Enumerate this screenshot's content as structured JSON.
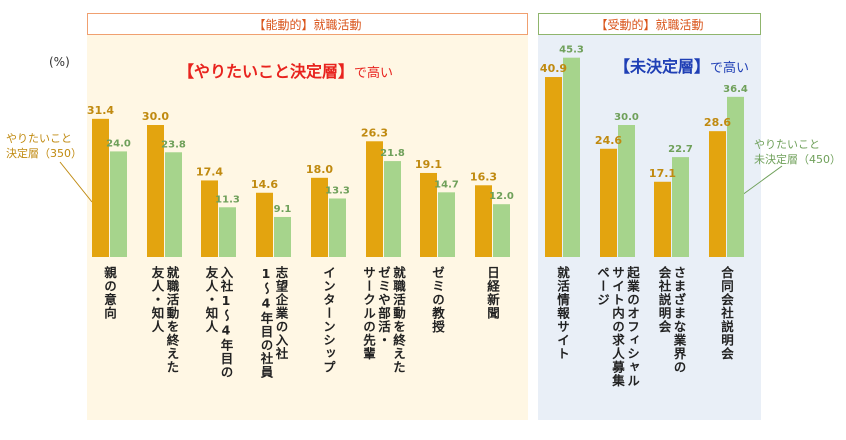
{
  "unit_label": "(%)",
  "panels": {
    "active": {
      "header": "【能動的】就職活動",
      "subtitle_main": "【やりたいこと決定層】",
      "subtitle_tail": "で高い",
      "accent": "#e8231e"
    },
    "passive": {
      "header": "【受動的】就職活動",
      "subtitle_main": "【未決定層】",
      "subtitle_tail": "で高い",
      "accent": "#1f3fb5"
    }
  },
  "legend": {
    "decided": "やりたいこと\n決定層（350）",
    "undecided": "やりたいこと\n未決定層（450）"
  },
  "colors": {
    "decided": "#e3a40f",
    "undecided": "#a6d48c",
    "active_bg": "#fff7e4",
    "passive_bg": "#e9eff7",
    "header_border_active": "#f0a070",
    "header_border_passive": "#8fb56d",
    "label_decided": "#c08a10",
    "label_undecided": "#6fa05a"
  },
  "chart_data": {
    "type": "bar",
    "ylabel": "(%)",
    "ylim": [
      0,
      50
    ],
    "categories": [
      "親の意向",
      "就職活動を終えた友人・知人",
      "入社1～4年目の友人・知人",
      "志望企業の入社1～4年目の社員",
      "インターンシップ",
      "就職活動を終えたゼミや部活・サークルの先輩",
      "ゼミの教授",
      "日経新聞",
      "就活情報サイト",
      "起業のオフィシャルサイト内の求人募集ページ",
      "さまざまな業界の会社説明会",
      "合同会社説明会"
    ],
    "series": [
      {
        "name": "やりたいこと決定層（350）",
        "values": [
          31.4,
          30.0,
          17.4,
          14.6,
          18.0,
          26.3,
          19.1,
          16.3,
          40.9,
          24.6,
          17.1,
          28.6
        ]
      },
      {
        "name": "やりたいこと未決定層（450）",
        "values": [
          24.0,
          23.8,
          11.3,
          9.1,
          13.3,
          21.8,
          14.7,
          12.0,
          45.3,
          30.0,
          22.7,
          36.4
        ]
      }
    ],
    "value_labels": {
      "decided": [
        "31.4",
        "30.0",
        "17.4",
        "14.6",
        "18.0",
        "26.3",
        "19.1",
        "16.3",
        "40.9",
        "24.6",
        "17.1",
        "28.6"
      ],
      "undecided": [
        "24.0",
        "23.8",
        "11.3",
        "9.1",
        "13.3",
        "21.8",
        "14.7",
        "12.0",
        "45.3",
        "30.0",
        "22.7",
        "36.4"
      ]
    },
    "category_lines": [
      [
        "親の意向"
      ],
      [
        "就職活動を終えた",
        "友人・知人"
      ],
      [
        "入社1～4年目の",
        "友人・知人"
      ],
      [
        "志望企業の入社",
        "1～4年目の社員"
      ],
      [
        "インターンシップ"
      ],
      [
        "就職活動を終えた",
        "ゼミや部活・",
        "サークルの先輩"
      ],
      [
        "ゼミの教授"
      ],
      [
        "日経新聞"
      ],
      [
        "就活情報サイト"
      ],
      [
        "起業のオフィシャル",
        "サイト内の求人募集",
        "ページ"
      ],
      [
        "さまざまな業界の",
        "会社説明会"
      ],
      [
        "合同会社説明会"
      ]
    ],
    "groups": [
      {
        "panel": "active",
        "indices": [
          0,
          1,
          2,
          3,
          4,
          5,
          6,
          7
        ]
      },
      {
        "panel": "passive",
        "indices": [
          8,
          9,
          10,
          11
        ]
      }
    ],
    "grid": false
  }
}
